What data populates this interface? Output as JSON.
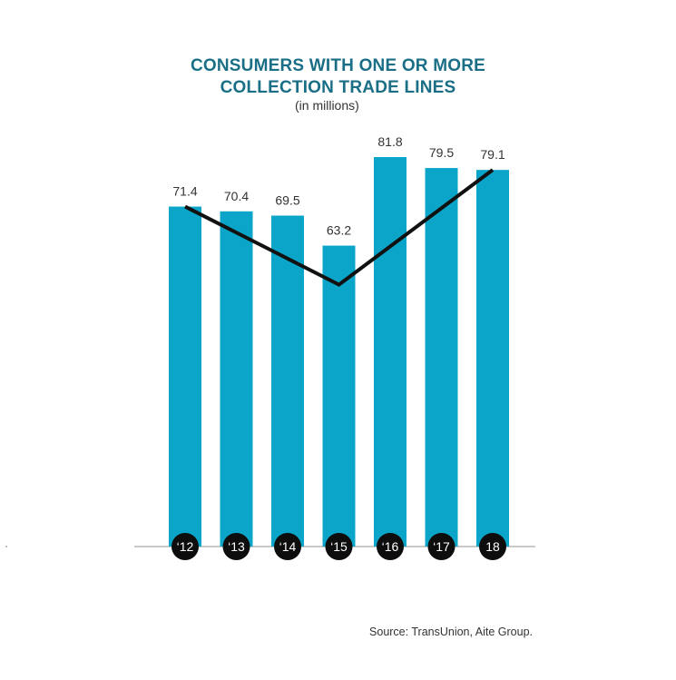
{
  "header": {
    "title_line1": "CONSUMERS WITH ONE OR MORE",
    "title_line2": "COLLECTION TRADE LINES",
    "subtitle": "(in millions)"
  },
  "footer": {
    "source": "Source: TransUnion, Aite Group."
  },
  "colors": {
    "bar": "#0aa5c8",
    "trend_line": "#111111",
    "title": "#1a6f86",
    "badge": "#0d0d0d",
    "axis": "#b7b7b7"
  },
  "chart_data": {
    "type": "bar",
    "title": "CONSUMERS WITH ONE OR MORE COLLECTION TRADE LINES",
    "subtitle": "(in millions)",
    "categories": [
      "‘12",
      "‘13",
      "‘14",
      "‘15",
      "‘16",
      "‘17",
      "18"
    ],
    "values": [
      71.4,
      70.4,
      69.5,
      63.2,
      81.8,
      79.5,
      79.1
    ],
    "value_labels": [
      "71.4",
      "70.4",
      "69.5",
      "63.2",
      "81.8",
      "79.5",
      "79.1"
    ],
    "ylim": [
      0,
      90
    ],
    "grid": false,
    "legend": "none",
    "trend_line": {
      "shape": "V",
      "points": [
        {
          "x": "‘12",
          "y": 71.4
        },
        {
          "x": "‘15",
          "y": 55
        },
        {
          "x": "18",
          "y": 79.1
        }
      ]
    }
  }
}
